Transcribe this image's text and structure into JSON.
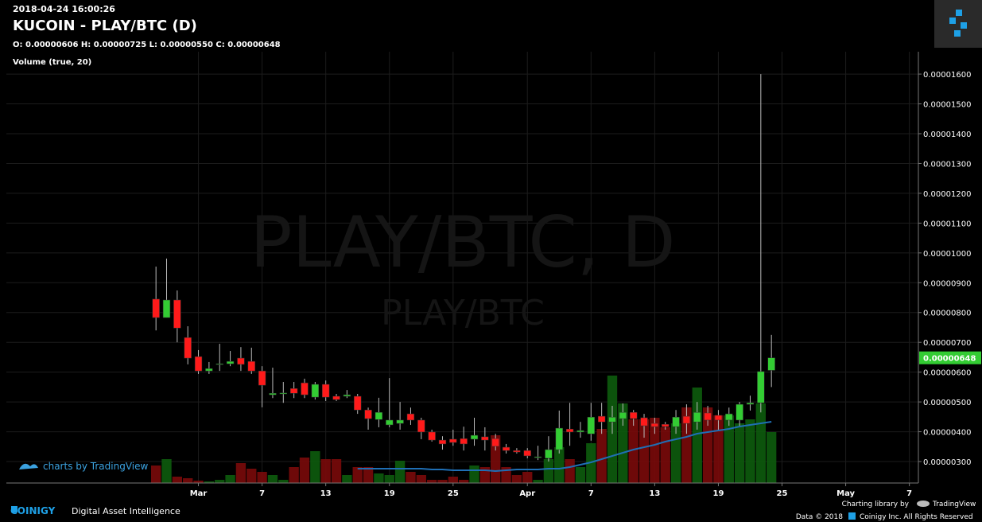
{
  "timestamp": "2018-04-24 16:00:26",
  "header": {
    "title": "KUCOIN - PLAY/BTC (D)",
    "ohlc_text": "O: 0.00000606 H: 0.00000725 L: 0.00000550 C: 0.00000648",
    "volume_label": "Volume (true, 20)"
  },
  "watermark": {
    "main": "PLAY/BTC, D",
    "sub": "PLAY/BTC"
  },
  "tradingview_badge": "charts by TradingView",
  "footer": {
    "brand": "COINIGY",
    "tagline": "Digital Asset Intelligence",
    "charting_by": "Charting library by",
    "charting_brand": "TradingView",
    "data_copyright": "Data © 2018",
    "rights": "Coinigy Inc. All Rights Reserved"
  },
  "chart_data": {
    "type": "candlestick",
    "up_color": "#33cc33",
    "down_color": "#ff1a1a",
    "volume_up_color": "#0d5c0d",
    "volume_down_color": "#7a0a0a",
    "volume_ma_color": "#1f6fb5",
    "grid": true,
    "xlim": [
      -14.1,
      71.85
    ],
    "xticks": [
      {
        "value": 4,
        "label": "Mar"
      },
      {
        "value": 10,
        "label": "7"
      },
      {
        "value": 16,
        "label": "13"
      },
      {
        "value": 22,
        "label": "19"
      },
      {
        "value": 28,
        "label": "25"
      },
      {
        "value": 35,
        "label": "Apr"
      },
      {
        "value": 41,
        "label": "7"
      },
      {
        "value": 47,
        "label": "13"
      },
      {
        "value": 53,
        "label": "19"
      },
      {
        "value": 59,
        "label": "25"
      },
      {
        "value": 65,
        "label": "May"
      },
      {
        "value": 71,
        "label": "7"
      }
    ],
    "ylim": [
      2.28e-06,
      1.675e-05
    ],
    "yticks": [
      {
        "value": 3e-06,
        "label": "0.00000300"
      },
      {
        "value": 4e-06,
        "label": "0.00000400"
      },
      {
        "value": 5e-06,
        "label": "0.00000500"
      },
      {
        "value": 6e-06,
        "label": "0.00000600"
      },
      {
        "value": 7e-06,
        "label": "0.00000700"
      },
      {
        "value": 8e-06,
        "label": "0.00000800"
      },
      {
        "value": 9e-06,
        "label": "0.00000900"
      },
      {
        "value": 1e-05,
        "label": "0.00001000"
      },
      {
        "value": 1.1e-05,
        "label": "0.00001100"
      },
      {
        "value": 1.2e-05,
        "label": "0.00001200"
      },
      {
        "value": 1.3e-05,
        "label": "0.00001300"
      },
      {
        "value": 1.4e-05,
        "label": "0.00001400"
      },
      {
        "value": 1.5e-05,
        "label": "0.00001500"
      },
      {
        "value": 1.6e-05,
        "label": "0.00001600"
      }
    ],
    "last_price": {
      "value": 6.48e-06,
      "label": "0.00000648"
    },
    "open": [
      8.45e-06,
      7.83e-06,
      8.42e-06,
      7.16e-06,
      6.52e-06,
      6.04e-06,
      6.26e-06,
      6.28e-06,
      6.47e-06,
      6.36e-06,
      6.04e-06,
      5.24e-06,
      5.27e-06,
      5.45e-06,
      5.64e-06,
      5.16e-06,
      5.59e-06,
      5.19e-06,
      5.19e-06,
      5.19e-06,
      4.73e-06,
      4.41e-06,
      4.23e-06,
      4.28e-06,
      4.6e-06,
      4.39e-06,
      3.99e-06,
      3.72e-06,
      3.75e-06,
      3.77e-06,
      3.75e-06,
      3.83e-06,
      3.77e-06,
      3.48e-06,
      3.37e-06,
      3.37e-06,
      3.13e-06,
      3.11e-06,
      3.4e-06,
      4.09e-06,
      3.99e-06,
      3.93e-06,
      4.52e-06,
      4.33e-06,
      4.44e-06,
      4.65e-06,
      4.47e-06,
      4.28e-06,
      4.25e-06,
      4.17e-06,
      4.52e-06,
      4.33e-06,
      4.63e-06,
      4.55e-06,
      4.39e-06,
      4.39e-06,
      4.92e-06,
      4.97e-06,
      6.06e-06
    ],
    "high": [
      9.54e-06,
      9.81e-06,
      8.74e-06,
      7.54e-06,
      6.74e-06,
      6.34e-06,
      6.95e-06,
      6.71e-06,
      6.84e-06,
      6.82e-06,
      6.2e-06,
      6.15e-06,
      5.67e-06,
      5.67e-06,
      5.78e-06,
      5.67e-06,
      5.72e-06,
      5.27e-06,
      5.4e-06,
      5.27e-06,
      4.81e-06,
      5.14e-06,
      5.8e-06,
      5e-06,
      4.81e-06,
      4.47e-06,
      4.07e-06,
      3.85e-06,
      4.07e-06,
      4.17e-06,
      4.47e-06,
      4.15e-06,
      3.93e-06,
      3.59e-06,
      3.45e-06,
      3.45e-06,
      3.53e-06,
      3.85e-06,
      4.71e-06,
      4.97e-06,
      4.33e-06,
      4.97e-06,
      4.97e-06,
      4.87e-06,
      4.95e-06,
      4.73e-06,
      4.6e-06,
      4.47e-06,
      4.33e-06,
      4.73e-06,
      4.92e-06,
      5e-06,
      4.87e-06,
      4.73e-06,
      4.81e-06,
      5e-06,
      5.21e-06,
      1.6e-05,
      7.25e-06
    ],
    "low": [
      7.4e-06,
      7.83e-06,
      7e-06,
      6.26e-06,
      5.94e-06,
      5.94e-06,
      6.04e-06,
      6.2e-06,
      6.04e-06,
      5.94e-06,
      4.82e-06,
      5.13e-06,
      4.97e-06,
      5.13e-06,
      5.13e-06,
      5.08e-06,
      5.03e-06,
      5.03e-06,
      5.13e-06,
      4.6e-06,
      4.07e-06,
      4.15e-06,
      4.15e-06,
      4.07e-06,
      4.23e-06,
      3.75e-06,
      3.67e-06,
      3.4e-06,
      3.53e-06,
      3.37e-06,
      3.53e-06,
      3.37e-06,
      3.37e-06,
      3.27e-06,
      3.27e-06,
      3.11e-06,
      3.05e-06,
      3e-06,
      3.27e-06,
      3.53e-06,
      3.8e-06,
      3.7e-06,
      3.93e-06,
      3.93e-06,
      4.2e-06,
      4.2e-06,
      3.8e-06,
      3.93e-06,
      4.07e-06,
      3.93e-06,
      3.93e-06,
      4.07e-06,
      4.2e-06,
      4.07e-06,
      4.2e-06,
      4.2e-06,
      4.71e-06,
      4.65e-06,
      5.5e-06
    ],
    "close": [
      7.83e-06,
      8.42e-06,
      7.48e-06,
      6.47e-06,
      6.04e-06,
      6.12e-06,
      6.28e-06,
      6.36e-06,
      6.26e-06,
      6.04e-06,
      5.56e-06,
      5.29e-06,
      5.3e-06,
      5.29e-06,
      5.24e-06,
      5.59e-06,
      5.16e-06,
      5.08e-06,
      5.24e-06,
      4.73e-06,
      4.44e-06,
      4.65e-06,
      4.39e-06,
      4.39e-06,
      4.39e-06,
      3.99e-06,
      3.72e-06,
      3.59e-06,
      3.64e-06,
      3.59e-06,
      3.88e-06,
      3.72e-06,
      3.51e-06,
      3.37e-06,
      3.32e-06,
      3.19e-06,
      3.16e-06,
      3.4e-06,
      4.12e-06,
      3.99e-06,
      4.04e-06,
      4.49e-06,
      4.33e-06,
      4.49e-06,
      4.65e-06,
      4.44e-06,
      4.2e-06,
      4.17e-06,
      4.17e-06,
      4.49e-06,
      4.28e-06,
      4.65e-06,
      4.39e-06,
      4.39e-06,
      4.6e-06,
      4.92e-06,
      4.97e-06,
      6.02e-06,
      6.48e-06
    ],
    "volume_lim": [
      0,
      542
    ],
    "volume": [
      22,
      30,
      8,
      6,
      3,
      2,
      4,
      10,
      25,
      18,
      14,
      10,
      4,
      20,
      32,
      40,
      30,
      30,
      10,
      20,
      20,
      12,
      10,
      28,
      14,
      10,
      4,
      4,
      8,
      4,
      22,
      20,
      60,
      20,
      10,
      14,
      4,
      30,
      45,
      30,
      20,
      50,
      68,
      135,
      100,
      80,
      80,
      82,
      70,
      75,
      95,
      120,
      95,
      85,
      85,
      75,
      80,
      100,
      64
    ],
    "volume_ma": [
      null,
      null,
      null,
      null,
      null,
      null,
      null,
      null,
      null,
      null,
      null,
      null,
      null,
      null,
      null,
      null,
      null,
      null,
      null,
      18,
      18,
      18,
      18,
      18,
      18,
      18,
      17,
      17,
      16,
      16,
      16,
      16,
      15,
      16,
      17,
      17,
      17,
      18,
      18,
      20,
      23,
      26,
      30,
      34,
      38,
      42,
      45,
      48,
      52,
      55,
      58,
      62,
      64,
      66,
      68,
      71,
      73,
      75,
      77
    ]
  }
}
